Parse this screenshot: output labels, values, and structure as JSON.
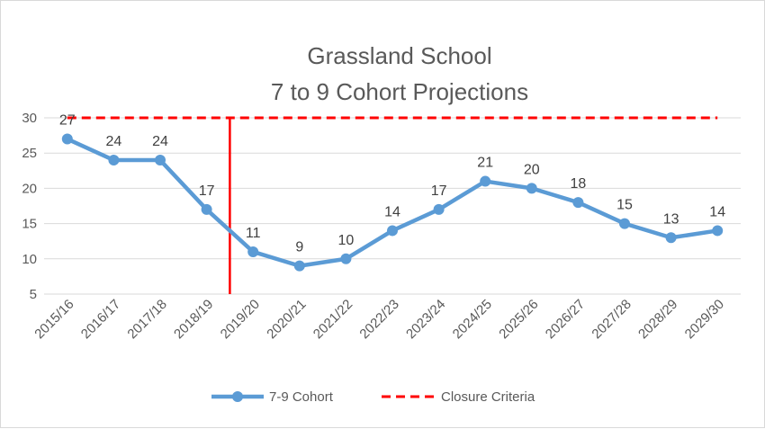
{
  "chart_data": {
    "type": "line",
    "title_lines": [
      "Grassland School",
      "7 to 9 Cohort Projections"
    ],
    "categories": [
      "2015/16",
      "2016/17",
      "2017/18",
      "2018/19",
      "2019/20",
      "2020/21",
      "2021/22",
      "2022/23",
      "2023/24",
      "2024/25",
      "2025/26",
      "2026/27",
      "2027/28",
      "2028/29",
      "2029/30"
    ],
    "series": [
      {
        "name": "7-9 Cohort",
        "values": [
          27,
          24,
          24,
          17,
          11,
          9,
          10,
          14,
          17,
          21,
          20,
          18,
          15,
          13,
          14
        ],
        "color": "#5b9bd5",
        "marker": "circle",
        "data_labels": true
      },
      {
        "name": "Closure Criteria",
        "values": [
          30,
          30,
          30,
          30,
          30,
          30,
          30,
          30,
          30,
          30,
          30,
          30,
          30,
          30,
          30
        ],
        "color": "#ff0000",
        "style": "dashed",
        "data_labels": false
      }
    ],
    "yticks": [
      5,
      10,
      15,
      20,
      25,
      30
    ],
    "ylim": [
      5,
      30
    ],
    "grid": "horizontal",
    "legend": "bottom",
    "vertical_marker": {
      "category": "2019/20",
      "color": "#ff0000"
    }
  }
}
